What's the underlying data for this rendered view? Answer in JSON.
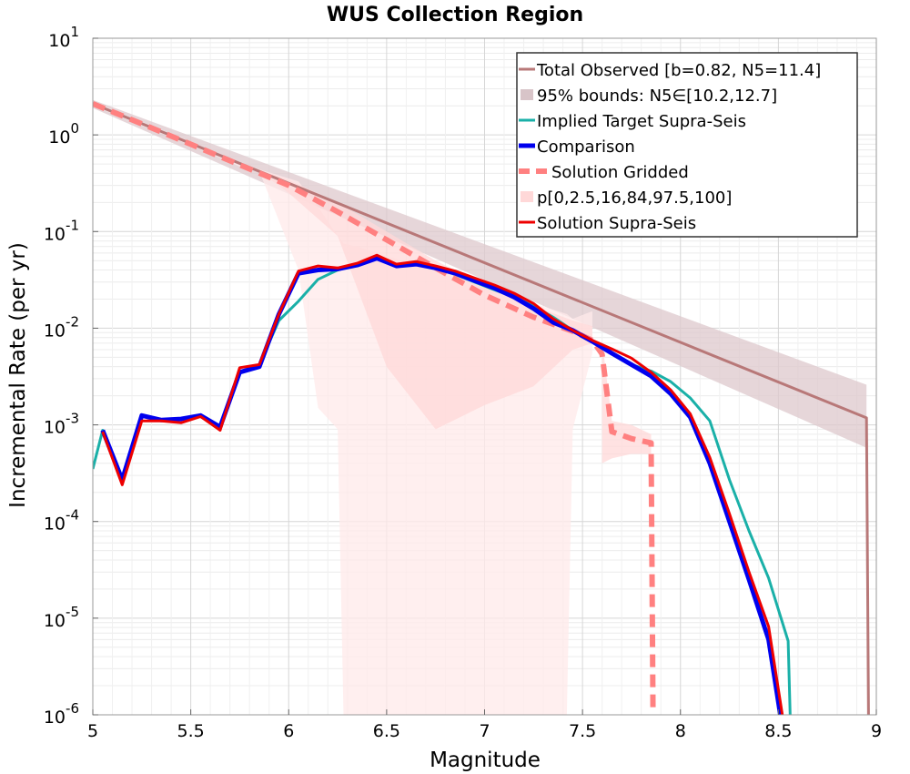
{
  "chart_data": {
    "type": "line",
    "title": "WUS Collection Region",
    "xlabel": "Magnitude",
    "ylabel": "Incremental Rate (per yr)",
    "xlim": [
      5,
      9
    ],
    "ylim": [
      1e-06,
      10
    ],
    "yscale": "log",
    "grid": true,
    "legend_position": "top-right",
    "x_ticks": [
      "5",
      "5.5",
      "6",
      "6.5",
      "7",
      "7.5",
      "8",
      "8.5",
      "9"
    ],
    "y_ticks": [
      {
        "base": "10",
        "exp": "-6"
      },
      {
        "base": "10",
        "exp": "-5"
      },
      {
        "base": "10",
        "exp": "-4"
      },
      {
        "base": "10",
        "exp": "-3"
      },
      {
        "base": "10",
        "exp": "-2"
      },
      {
        "base": "10",
        "exp": "-1"
      },
      {
        "base": "10",
        "exp": "0"
      },
      {
        "base": "10",
        "exp": "1"
      }
    ],
    "legend": [
      {
        "label": "Total Observed [b=0.82, N5=11.4]",
        "color": "#b87878",
        "style": "line"
      },
      {
        "label": "95% bounds: N5∈[10.2,12.7]",
        "color": "#d8c4c8",
        "style": "band"
      },
      {
        "label": "Implied Target Supra-Seis",
        "color": "#1ab0a8",
        "style": "line"
      },
      {
        "label": "Comparison",
        "color": "#0000ee",
        "style": "thick-line"
      },
      {
        "label": "Solution Gridded",
        "color": "#ff8080",
        "style": "dashed"
      },
      {
        "label": "p[0,2.5,16,84,97.5,100]",
        "color": "#ffd8d8",
        "style": "band"
      },
      {
        "label": "Solution Supra-Seis",
        "color": "#ee0000",
        "style": "line"
      }
    ],
    "series": [
      {
        "name": "Total Observed [b=0.82, N5=11.4]",
        "color": "#b87878",
        "x": [
          5.0,
          8.95,
          8.96
        ],
        "y": [
          2.1,
          0.00118,
          1e-06
        ]
      },
      {
        "name": "Implied Target Supra-Seis",
        "color": "#1ab0a8",
        "x": [
          5.0,
          5.05,
          5.15,
          5.25,
          5.35,
          5.45,
          5.55,
          5.65,
          5.75,
          5.85,
          5.95,
          6.05,
          6.15,
          6.25,
          6.35,
          6.45,
          6.55,
          6.65,
          6.75,
          6.85,
          6.95,
          7.05,
          7.15,
          7.25,
          7.35,
          7.45,
          7.55,
          7.65,
          7.75,
          7.85,
          7.95,
          8.05,
          8.15,
          8.25,
          8.35,
          8.45,
          8.55,
          8.56
        ],
        "y": [
          0.00035,
          0.00088,
          0.00026,
          0.00125,
          0.00112,
          0.00115,
          0.00125,
          0.00095,
          0.0035,
          0.0042,
          0.012,
          0.019,
          0.032,
          0.04,
          0.045,
          0.053,
          0.045,
          0.047,
          0.042,
          0.036,
          0.03,
          0.025,
          0.021,
          0.017,
          0.013,
          0.0095,
          0.0075,
          0.0055,
          0.0042,
          0.0036,
          0.0028,
          0.0019,
          0.0011,
          0.00027,
          8e-05,
          2.6e-05,
          5.8e-06,
          1e-06
        ]
      },
      {
        "name": "Comparison",
        "color": "#0000ee",
        "x": [
          5.05,
          5.15,
          5.25,
          5.35,
          5.45,
          5.55,
          5.65,
          5.75,
          5.85,
          5.95,
          6.05,
          6.15,
          6.25,
          6.35,
          6.45,
          6.55,
          6.65,
          6.75,
          6.85,
          6.95,
          7.05,
          7.15,
          7.25,
          7.35,
          7.45,
          7.55,
          7.65,
          7.75,
          7.85,
          7.95,
          8.05,
          8.15,
          8.25,
          8.35,
          8.45,
          8.51
        ],
        "y": [
          0.00088,
          0.00027,
          0.00125,
          0.00112,
          0.00115,
          0.00125,
          0.00095,
          0.0035,
          0.004,
          0.014,
          0.037,
          0.04,
          0.041,
          0.045,
          0.053,
          0.044,
          0.046,
          0.042,
          0.037,
          0.031,
          0.026,
          0.021,
          0.016,
          0.0115,
          0.0095,
          0.0073,
          0.0055,
          0.0042,
          0.0032,
          0.0021,
          0.0012,
          0.0004,
          0.0001,
          2.5e-05,
          6e-06,
          1e-06
        ]
      },
      {
        "name": "Solution Gridded",
        "color": "#ff8080",
        "x": [
          5.0,
          5.25,
          5.5,
          5.75,
          6.0,
          6.25,
          6.5,
          6.75,
          7.0,
          7.25,
          7.45,
          7.55,
          7.6,
          7.65,
          7.75,
          7.85,
          7.86
        ],
        "y": [
          2.1,
          1.3,
          0.8,
          0.49,
          0.3,
          0.16,
          0.082,
          0.042,
          0.022,
          0.013,
          0.0093,
          0.0075,
          0.0054,
          0.00085,
          0.00072,
          0.00065,
          1e-06
        ]
      },
      {
        "name": "Solution Supra-Seis",
        "color": "#ee0000",
        "x": [
          5.05,
          5.15,
          5.25,
          5.35,
          5.45,
          5.55,
          5.65,
          5.75,
          5.85,
          5.95,
          6.05,
          6.15,
          6.25,
          6.35,
          6.45,
          6.55,
          6.65,
          6.75,
          6.85,
          6.95,
          7.05,
          7.15,
          7.25,
          7.35,
          7.45,
          7.55,
          7.65,
          7.75,
          7.85,
          7.95,
          8.05,
          8.15,
          8.25,
          8.35,
          8.45,
          8.52
        ],
        "y": [
          0.00085,
          0.00024,
          0.0011,
          0.0011,
          0.00105,
          0.00122,
          0.00088,
          0.0039,
          0.0042,
          0.014,
          0.039,
          0.044,
          0.042,
          0.047,
          0.057,
          0.046,
          0.049,
          0.044,
          0.039,
          0.033,
          0.028,
          0.023,
          0.018,
          0.0125,
          0.0095,
          0.0075,
          0.0061,
          0.0049,
          0.0035,
          0.0023,
          0.0013,
          0.00046,
          0.00012,
          3e-05,
          8.2e-06,
          1e-06
        ]
      }
    ],
    "bands": [
      {
        "name": "95% bounds: N5∈[10.2,12.7]",
        "color": "#ddc8cc",
        "x": [
          5.0,
          8.95
        ],
        "lower": [
          1.9,
          0.00058
        ],
        "upper": [
          2.3,
          0.0026
        ]
      },
      {
        "name": "p[0,2.5,16,84,97.5,100] outer",
        "color": "#ffeaea",
        "x": [
          5.0,
          5.5,
          5.75,
          5.85,
          6.05,
          6.15,
          6.25,
          6.28,
          6.35,
          7.42,
          7.45,
          7.55
        ],
        "lower": [
          2.0,
          0.78,
          0.47,
          0.42,
          0.04,
          0.0015,
          0.0009,
          1e-06,
          1e-06,
          1e-06,
          0.0009,
          0.0055
        ],
        "upper": [
          2.2,
          0.85,
          0.52,
          0.44,
          0.33,
          0.18,
          0.09,
          0.075,
          0.07,
          0.014,
          0.0125,
          0.015
        ]
      },
      {
        "name": "p[0,2.5,16,84,97.5,100] inner",
        "color": "#ffd8d8",
        "x": [
          5.85,
          6.0,
          6.25,
          6.5,
          6.75,
          7.0,
          7.25,
          7.45,
          7.55
        ],
        "lower": [
          0.42,
          0.25,
          0.09,
          0.004,
          0.0009,
          0.0016,
          0.0025,
          0.006,
          0.007
        ],
        "upper": [
          0.44,
          0.34,
          0.2,
          0.1,
          0.05,
          0.028,
          0.017,
          0.012,
          0.0105
        ]
      },
      {
        "name": "p[0,2.5,16,84,97.5,100] tail",
        "color": "#ffd8d8",
        "x": [
          7.6,
          7.65,
          7.75,
          7.85
        ],
        "lower": [
          0.0004,
          0.00045,
          0.0005,
          0.0005
        ],
        "upper": [
          0.0075,
          0.0011,
          0.001,
          0.0008
        ]
      }
    ]
  }
}
